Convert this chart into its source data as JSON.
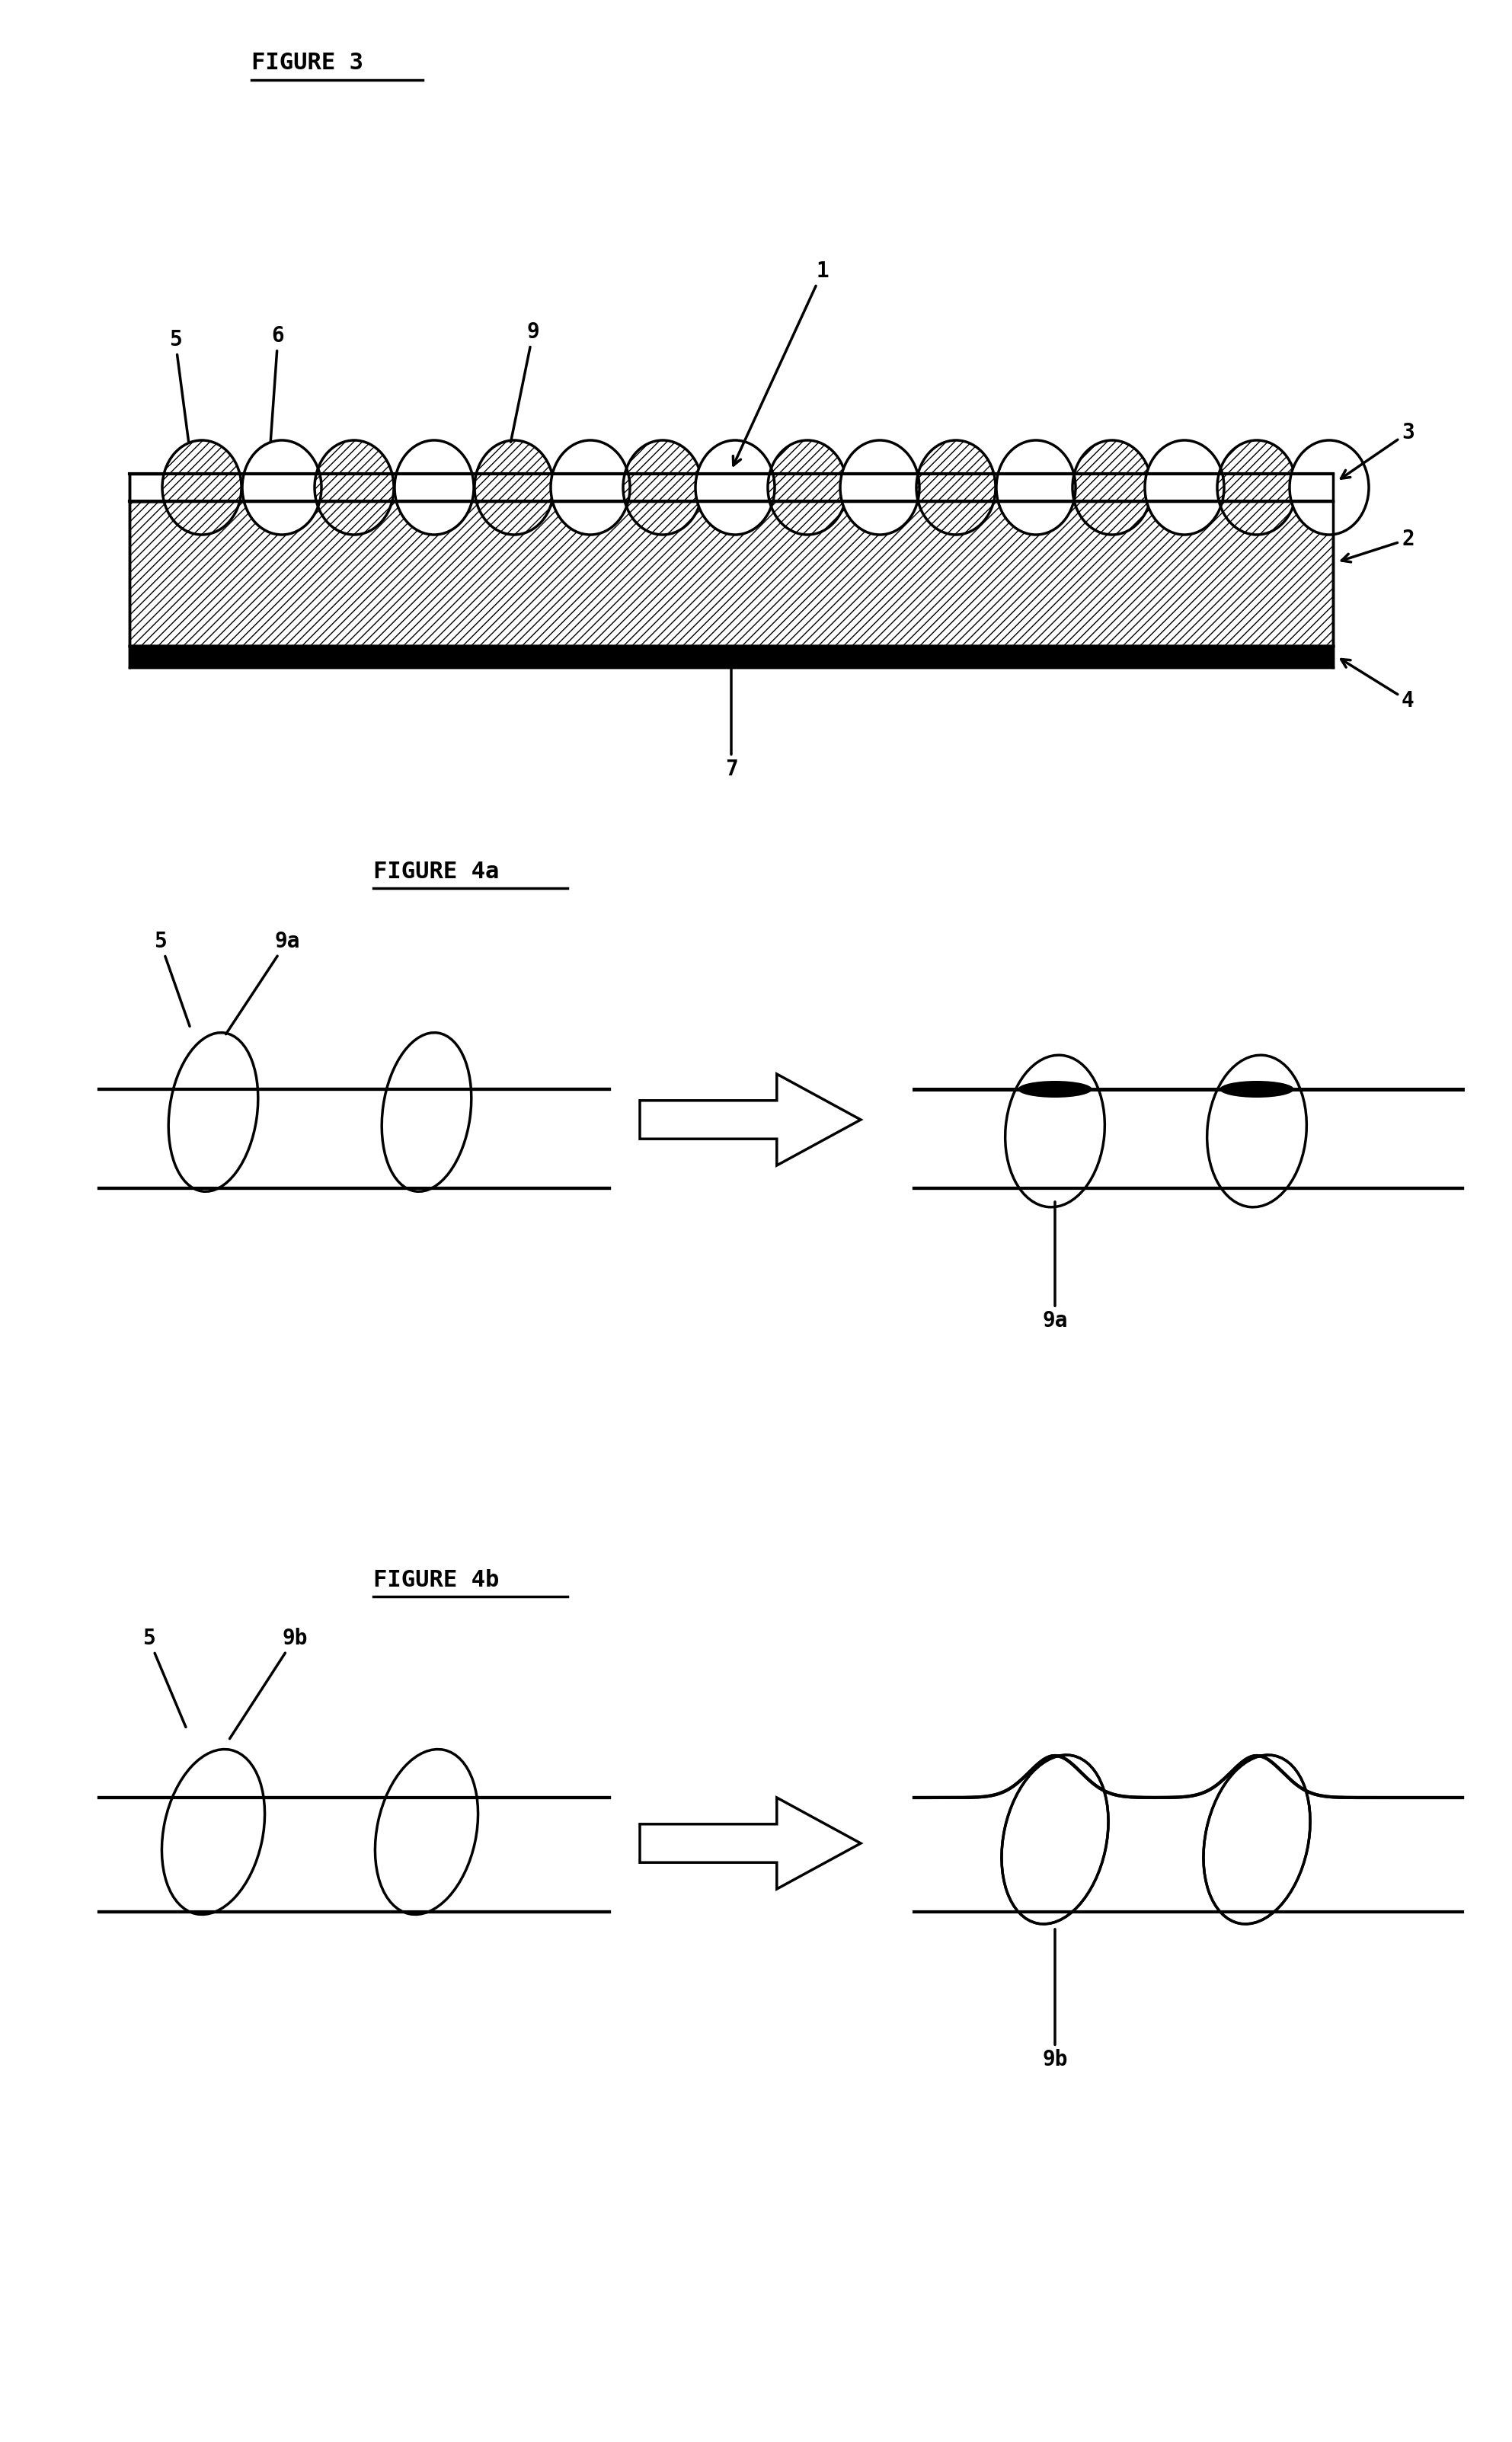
{
  "fig_width": 19.85,
  "fig_height": 32.06,
  "bg_color": "#ffffff",
  "fig3_title": "FIGURE 3",
  "fig4a_title": "FIGURE 4a",
  "fig4b_title": "FIGURE 4b",
  "title_fontsize": 22,
  "label_fontsize": 20
}
